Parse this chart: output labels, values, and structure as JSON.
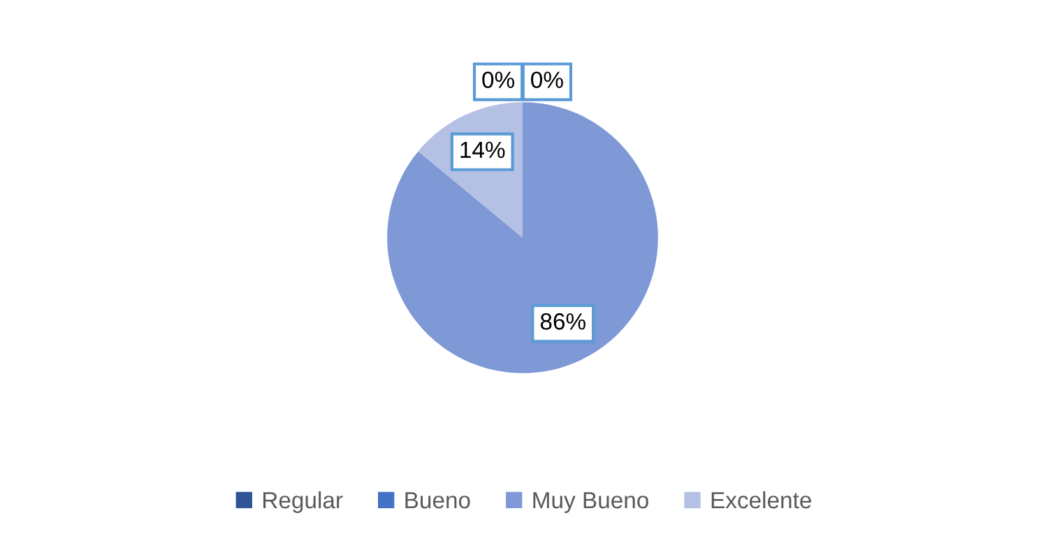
{
  "chart_data": {
    "type": "pie",
    "categories": [
      "Regular",
      "Bueno",
      "Muy Bueno",
      "Excelente"
    ],
    "values": [
      0,
      0,
      86,
      14
    ],
    "colors": [
      "#2f5597",
      "#4472c4",
      "#7f98d6",
      "#b4c0e4"
    ],
    "value_labels": [
      "0%",
      "0%",
      "86%",
      "14%"
    ],
    "legend": "bottom"
  }
}
